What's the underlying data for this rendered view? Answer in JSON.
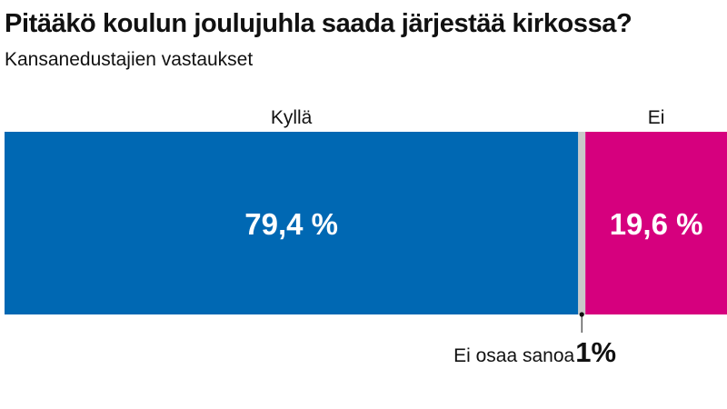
{
  "chart_data": {
    "type": "bar",
    "stacked": true,
    "orientation": "horizontal",
    "title": "Pitääkö koulun joulujuhla saada järjestää kirkossa?",
    "subtitle": "Kansanedustajien vastaukset",
    "total": 100,
    "unit": "%",
    "segments": [
      {
        "name": "Kyllä",
        "value": 79.4,
        "value_label": "79,4 %",
        "color": "#0068b3",
        "label": "Kyllä"
      },
      {
        "name": "Ei osaa sanoa",
        "value": 1,
        "value_label": "1%",
        "color": "#c9c9c9",
        "label": "Ei osaa sanoa",
        "label_placement": "below"
      },
      {
        "name": "Ei",
        "value": 19.6,
        "value_label": "19,6 %",
        "color": "#d6007e",
        "label": "Ei"
      }
    ]
  }
}
